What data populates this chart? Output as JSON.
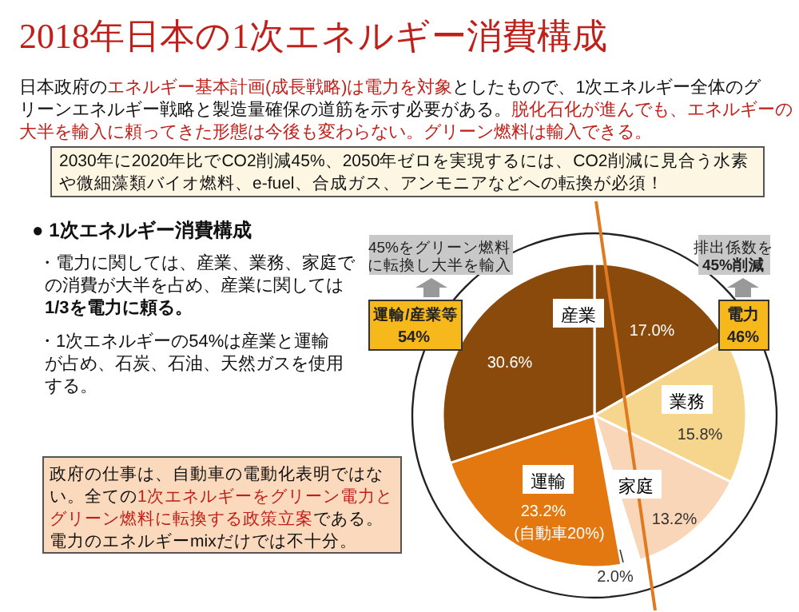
{
  "chart_data": {
    "type": "pie",
    "title": "2018年日本の1次エネルギー消費構成",
    "categories": [
      null,
      "業務",
      "家庭",
      null,
      "運輸",
      "産業"
    ],
    "values": [
      17.0,
      15.8,
      13.2,
      2.0,
      23.2,
      30.6
    ],
    "colors": [
      "#8a4a0c",
      "#f6d58c",
      "#f9d6b8",
      "#ffffff",
      "#e2780f",
      "#8a4a0c"
    ],
    "value_labels": [
      "17.0%",
      "15.8%",
      "13.2%",
      "2.0%",
      "23.2%",
      "30.6%"
    ],
    "annotations": [
      "日本政府の",
      "エネルギー基本計画(成長戦略)は電力を対象",
      "としたもので、1次エネルギー全体のグ",
      "リーンエネルギー戦略と製造量確保の道筋を示す必要がある。",
      "脱化石化が進んでも、エネルギーの",
      "大半を輸入に頼ってきた形態は今後も変わらない。グリーン燃料は輸入できる。",
      "2030年に2020年比でCO2削減45%、2050年ゼロを実現するには、CO2削減に見合う水素",
      "や微細藻類バイオ燃料、e-fuel、合成ガス、アンモニアなどへの転換が必須！",
      "● 1次エネルギー消費構成",
      "・電力に関しては、産業、業務、家庭で",
      "の消費が大半を占め、産業に関しては",
      "1/3を電力に頼る。",
      "・1次エネルギーの54%は産業と運輸",
      "が占め、石炭、石油、天然ガスを使用",
      "する。",
      "政府の仕事は、自動車の電動化表明ではな",
      "い。全ての",
      "1次エネルギーをグリーン電力と",
      "グリーン燃料に転換する政策立案",
      "である。",
      "電力のエネルギーmixだけでは不十分。",
      "45%をグリーン燃料",
      "に転換し大半を輸入",
      "運輸/産業等",
      "54%",
      "排出係数を",
      "45%削減",
      "電力",
      "46%",
      "(自動車20%)"
    ]
  }
}
